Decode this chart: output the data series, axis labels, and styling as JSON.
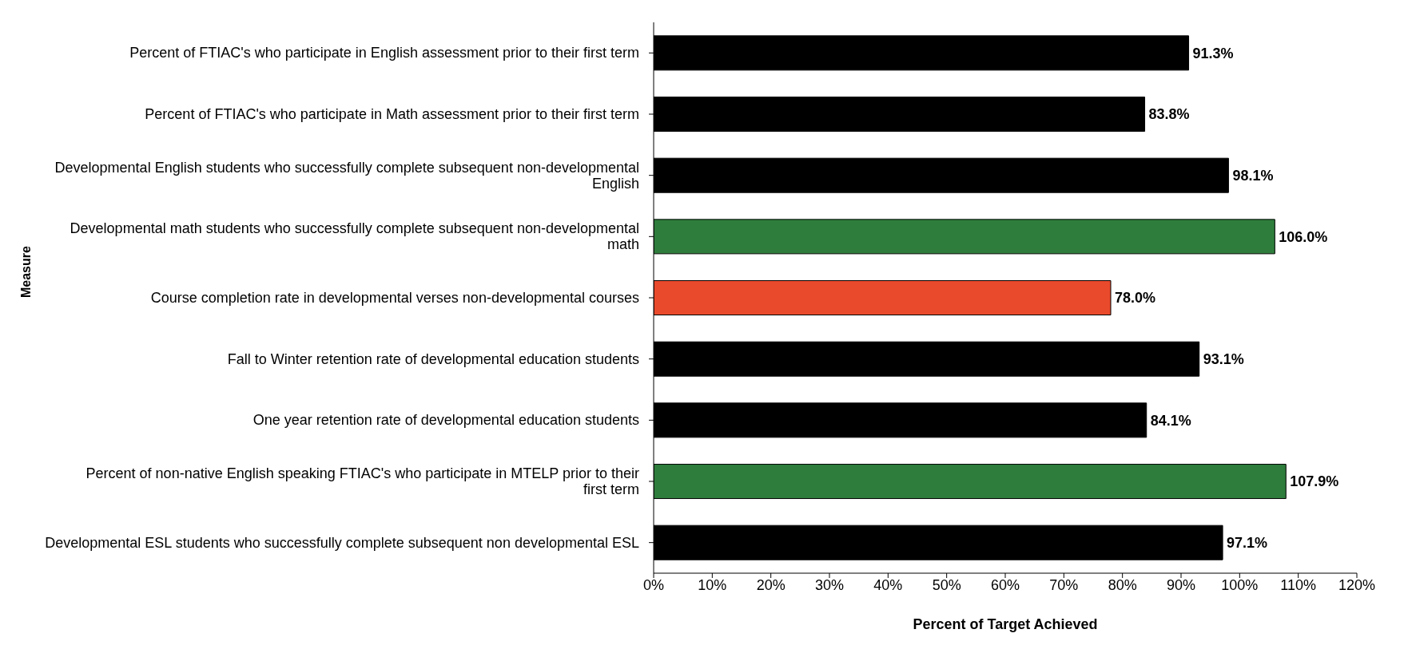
{
  "chart_data": {
    "type": "bar",
    "orientation": "horizontal",
    "xlabel": "Percent of Target Achieved",
    "ylabel": "Measure",
    "categories": [
      "Percent of FTIAC's who participate in English assessment prior to their first term",
      "Percent of FTIAC's who participate in Math assessment prior to their first term",
      "Developmental English students who successfully complete subsequent non-developmental English",
      "Developmental math students who successfully complete subsequent non-developmental math",
      "Course completion rate in developmental verses non-developmental courses",
      "Fall to Winter retention rate of developmental education students",
      "One year retention rate of developmental education students",
      "Percent of non-native English speaking FTIAC's who participate in MTELP prior to their first term",
      "Developmental ESL students who successfully complete subsequent non developmental ESL"
    ],
    "values": [
      91.3,
      83.8,
      98.1,
      106.0,
      78.0,
      93.1,
      84.1,
      107.9,
      97.1
    ],
    "colors": [
      "#000000",
      "#000000",
      "#000000",
      "#2e7d3c",
      "#ea4a2c",
      "#000000",
      "#000000",
      "#2e7d3c",
      "#000000"
    ],
    "value_labels": [
      "91.3%",
      "83.8%",
      "98.1%",
      "106.0%",
      "78.0%",
      "93.1%",
      "84.1%",
      "107.9%",
      "97.1%"
    ],
    "xlim": [
      0,
      120
    ],
    "xticks": [
      {
        "value": 0,
        "label": "0%"
      },
      {
        "value": 10,
        "label": "10%"
      },
      {
        "value": 20,
        "label": "20%"
      },
      {
        "value": 30,
        "label": "30%"
      },
      {
        "value": 40,
        "label": "40%"
      },
      {
        "value": 50,
        "label": "50%"
      },
      {
        "value": 60,
        "label": "60%"
      },
      {
        "value": 70,
        "label": "70%"
      },
      {
        "value": 80,
        "label": "80%"
      },
      {
        "value": 90,
        "label": "90%"
      },
      {
        "value": 100,
        "label": "100%"
      },
      {
        "value": 110,
        "label": "110%"
      },
      {
        "value": 120,
        "label": "120%"
      }
    ],
    "grid": false,
    "legend": false
  }
}
